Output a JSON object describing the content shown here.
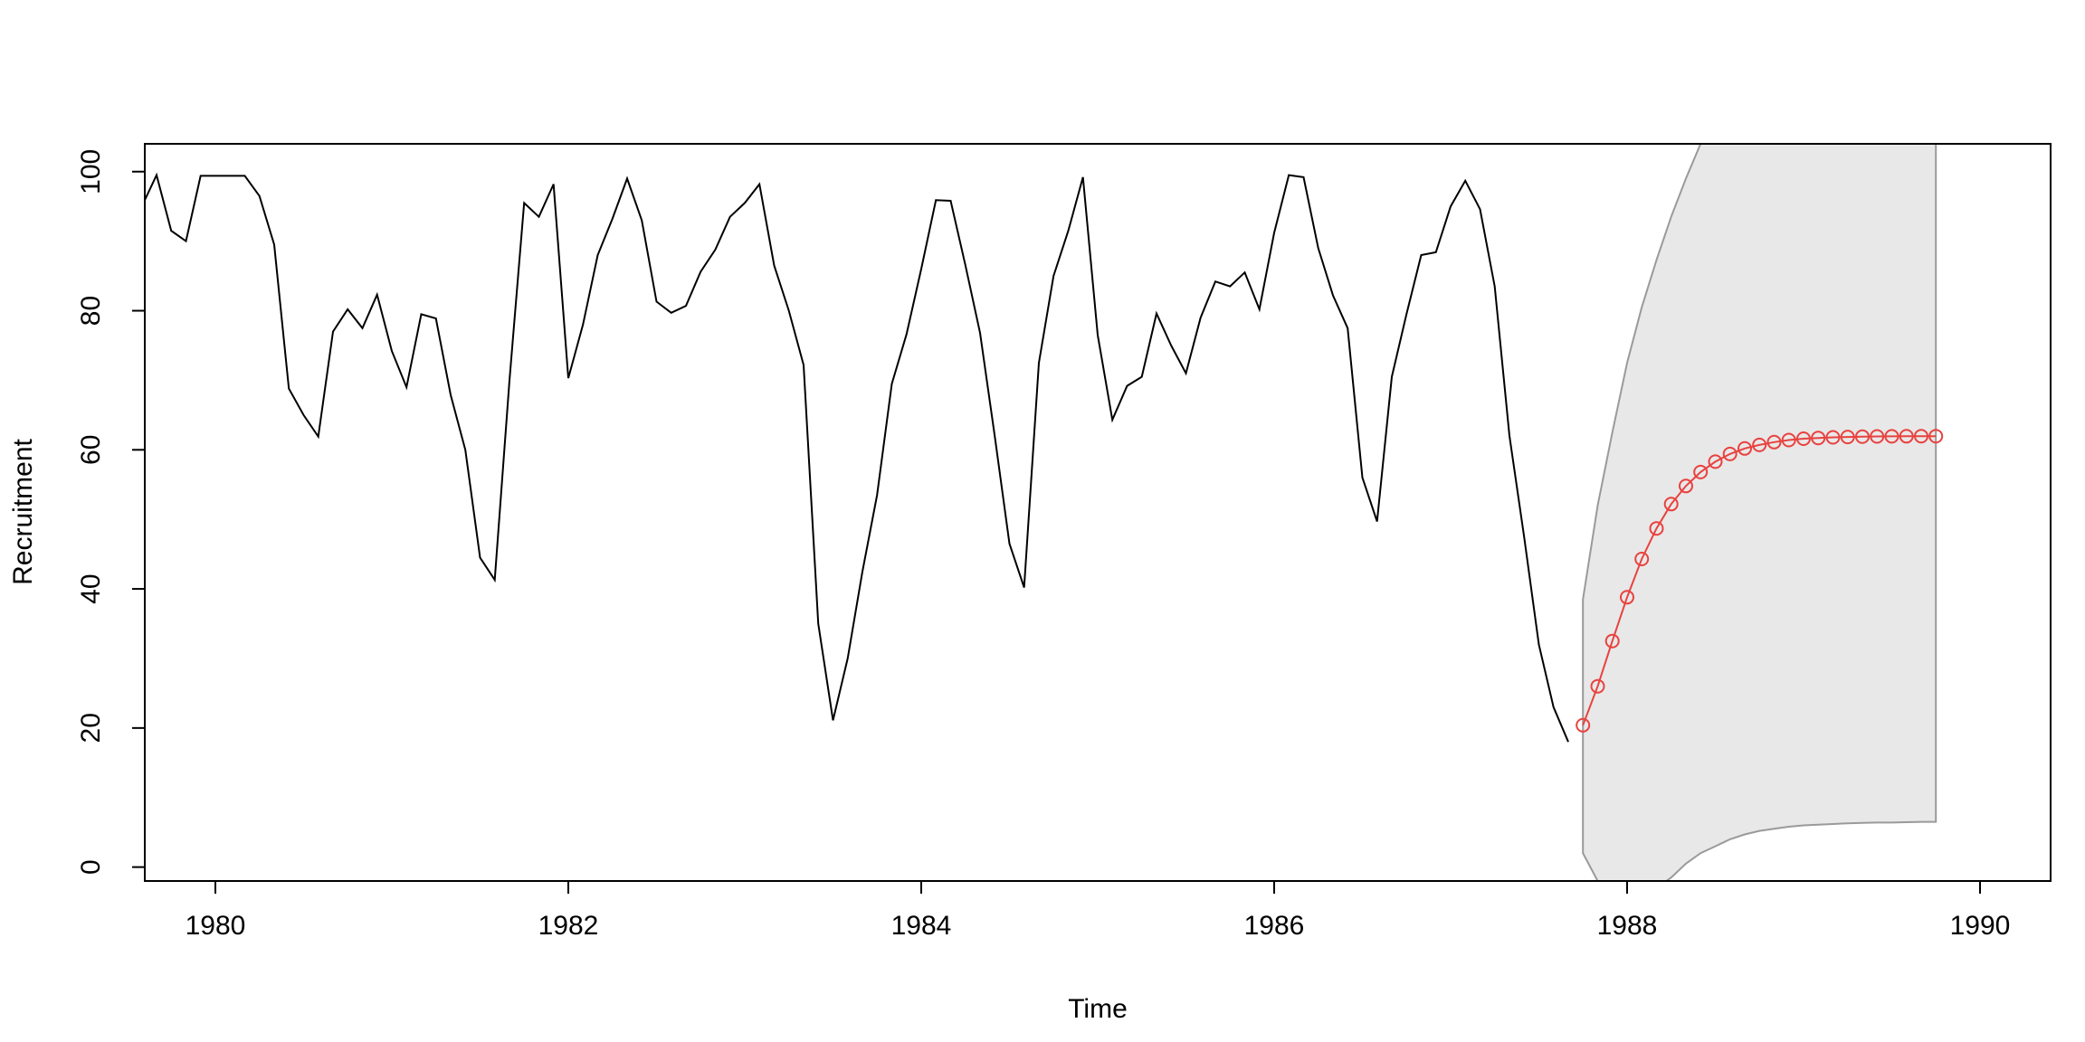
{
  "chart_data": {
    "type": "line",
    "xlabel": "Time",
    "ylabel": "Recruitment",
    "xlim": [
      1979.6,
      1990.4
    ],
    "ylim": [
      -2,
      104
    ],
    "x_ticks": [
      1980,
      1982,
      1984,
      1986,
      1988,
      1990
    ],
    "x_tick_labels": [
      "1980",
      "1982",
      "1984",
      "1986",
      "1988",
      "1990"
    ],
    "y_ticks": [
      0,
      20,
      40,
      60,
      80,
      100
    ],
    "y_tick_labels": [
      "0",
      "20",
      "40",
      "60",
      "80",
      "100"
    ],
    "grid": false,
    "observed": {
      "start": 1979.5833,
      "step": 0.083333,
      "color": "#000000",
      "values": [
        95,
        99.5,
        91.5,
        90,
        99.4,
        99.4,
        99.4,
        99.4,
        96.5,
        89.5,
        68.8,
        65,
        61.9,
        77,
        80.2,
        77.5,
        82.3,
        74.2,
        69,
        79.5,
        78.9,
        67.9,
        60,
        44.5,
        41.3,
        70,
        95.5,
        93.5,
        98.2,
        70.3,
        78,
        88,
        93.2,
        99,
        93,
        81.3,
        79.7,
        80.7,
        85.6,
        88.8,
        93.5,
        95.5,
        98.2,
        86.5,
        80,
        72.2,
        35,
        21.1,
        30,
        42.5,
        53.5,
        69.5,
        76.6,
        86,
        95.9,
        95.8,
        86.6,
        76.8,
        62,
        46.5,
        40.2,
        72.5,
        85,
        91.5,
        99.2,
        76.5,
        64.3,
        69.2,
        70.5,
        79.6,
        75,
        71,
        79,
        84.2,
        83.5,
        85.5,
        80.2,
        91.2,
        99.5,
        99.2,
        89,
        82.2,
        77.5,
        56,
        49.7,
        70.5,
        79.5,
        88,
        88.4,
        95,
        98.7,
        94.6,
        83.5,
        62,
        47.5,
        32,
        23,
        18
      ]
    },
    "forecast": {
      "start": 1987.75,
      "step": 0.083333,
      "color": "#e8423f",
      "values": [
        20.4,
        26,
        32.5,
        38.8,
        44.3,
        48.7,
        52.2,
        54.8,
        56.8,
        58.3,
        59.4,
        60.2,
        60.7,
        61.1,
        61.4,
        61.6,
        61.7,
        61.8,
        61.85,
        61.9,
        61.92,
        61.94,
        61.95,
        61.96,
        61.97
      ]
    },
    "prediction_band": {
      "fill": "#e8e8e8",
      "stroke": "#9a9a9a",
      "upper": [
        38.5,
        52,
        62.5,
        72.5,
        80.5,
        87.3,
        93.5,
        99,
        104,
        104,
        104,
        104,
        104,
        104,
        104,
        104,
        104,
        104,
        104,
        104,
        104,
        104,
        104,
        104,
        104
      ],
      "lower": [
        2,
        -2,
        -4,
        -5,
        -4.5,
        -3,
        -1.5,
        0.5,
        2,
        3,
        4,
        4.7,
        5.2,
        5.5,
        5.8,
        6,
        6.1,
        6.2,
        6.3,
        6.35,
        6.4,
        6.4,
        6.45,
        6.5,
        6.5
      ]
    }
  }
}
